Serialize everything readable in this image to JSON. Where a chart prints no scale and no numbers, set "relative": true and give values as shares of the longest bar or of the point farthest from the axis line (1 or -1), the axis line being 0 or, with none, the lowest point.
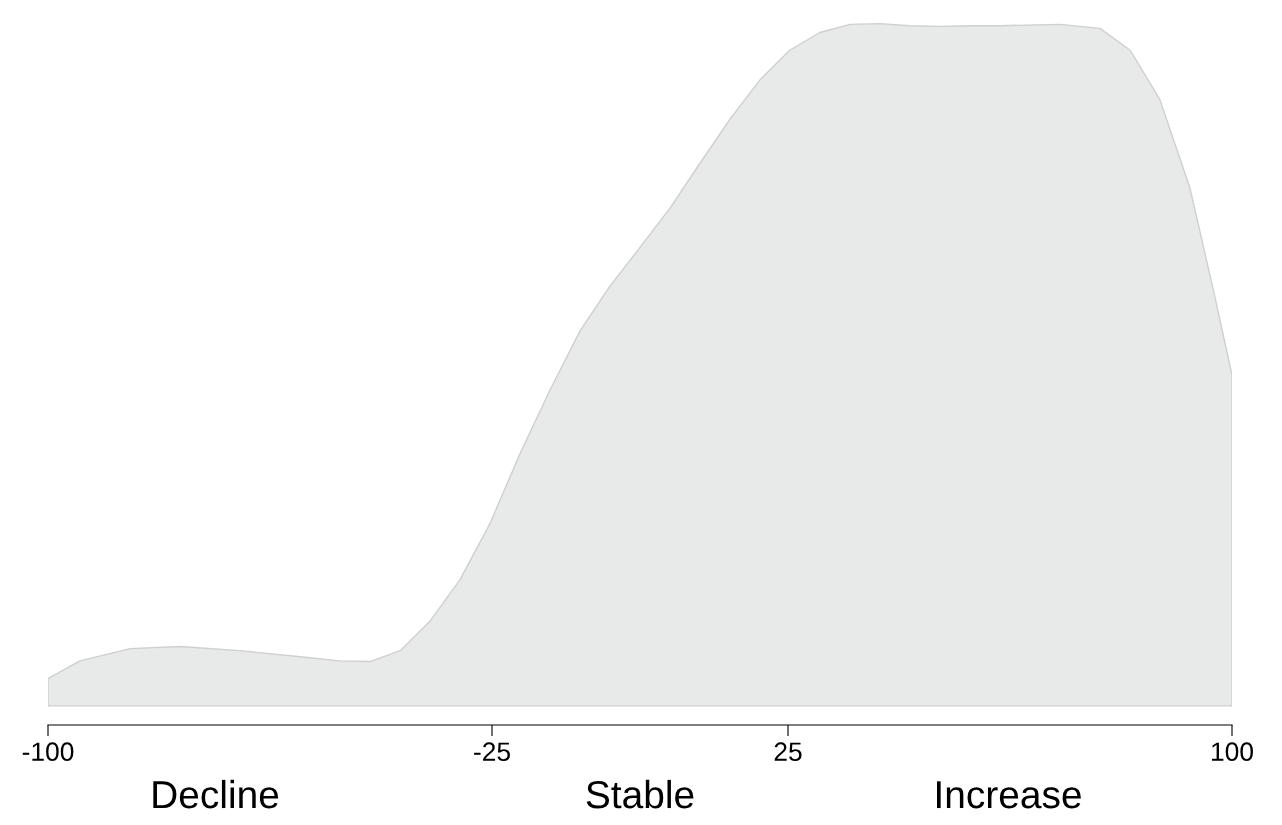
{
  "chart_data": {
    "type": "area",
    "relative": true,
    "color": "#e8e9e9",
    "x": [
      -100,
      -94.6,
      -86.1,
      -77.7,
      -67.6,
      -57.4,
      -50.7,
      -45.6,
      -40.5,
      -35.5,
      -30.4,
      -25.3,
      -20.3,
      -15.2,
      -10.1,
      -5.1,
      0,
      5.1,
      10.1,
      15.2,
      20.3,
      25.3,
      30.4,
      35.5,
      40.5,
      45.6,
      50.7,
      55.7,
      60.8,
      70.9,
      77.7,
      82.8,
      87.8,
      92.9,
      97.1,
      100
    ],
    "values": [
      0.04,
      0.066,
      0.084,
      0.087,
      0.081,
      0.072,
      0.066,
      0.065,
      0.081,
      0.124,
      0.185,
      0.268,
      0.369,
      0.463,
      0.55,
      0.615,
      0.672,
      0.73,
      0.795,
      0.86,
      0.918,
      0.961,
      0.987,
      0.999,
      1.0,
      0.997,
      0.996,
      0.997,
      0.997,
      0.999,
      0.993,
      0.961,
      0.889,
      0.759,
      0.6,
      0.485
    ],
    "xlim": [
      -100,
      100
    ],
    "xticks": [
      -100,
      -25,
      25,
      100
    ],
    "annotations": [
      "Decline",
      "Stable",
      "Increase"
    ]
  }
}
